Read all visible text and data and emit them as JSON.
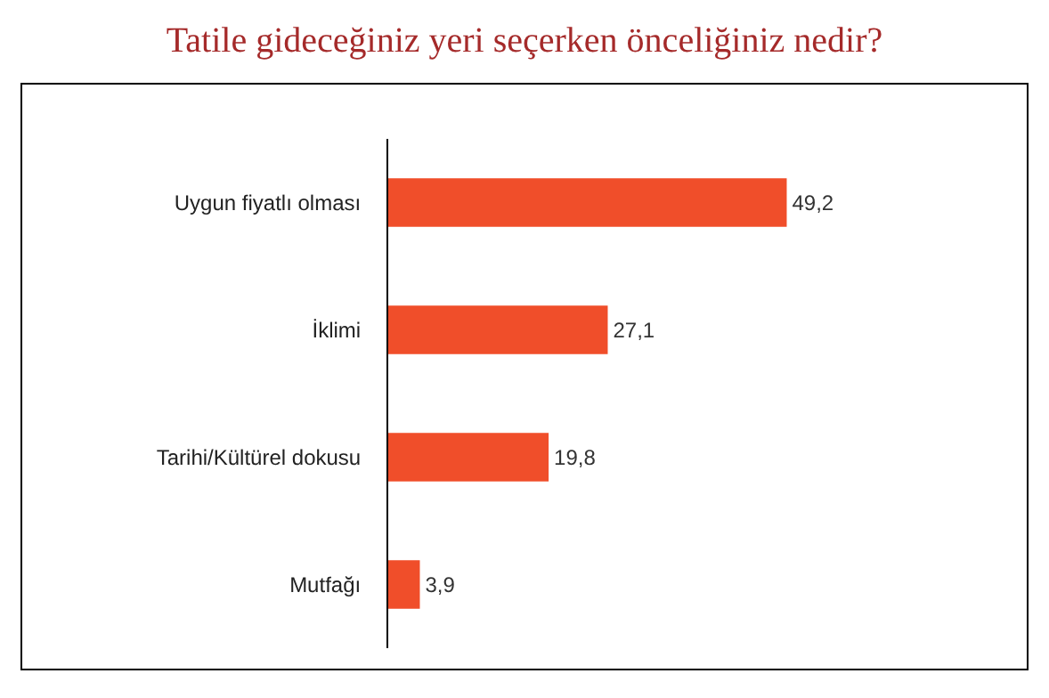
{
  "chart_data": {
    "type": "bar",
    "orientation": "horizontal",
    "title": "Tatile gideceğiniz yeri seçerken önceliğiniz nedir?",
    "categories": [
      "Uygun fiyatlı olması",
      "İklimi",
      "Tarihi/Kültürel dokusu",
      "Mutfağı"
    ],
    "values": [
      49.2,
      27.1,
      19.8,
      3.9
    ],
    "value_labels": [
      "49,2",
      "27,1",
      "19,8",
      "3,9"
    ],
    "color": "#f04e2a",
    "legend": false
  }
}
